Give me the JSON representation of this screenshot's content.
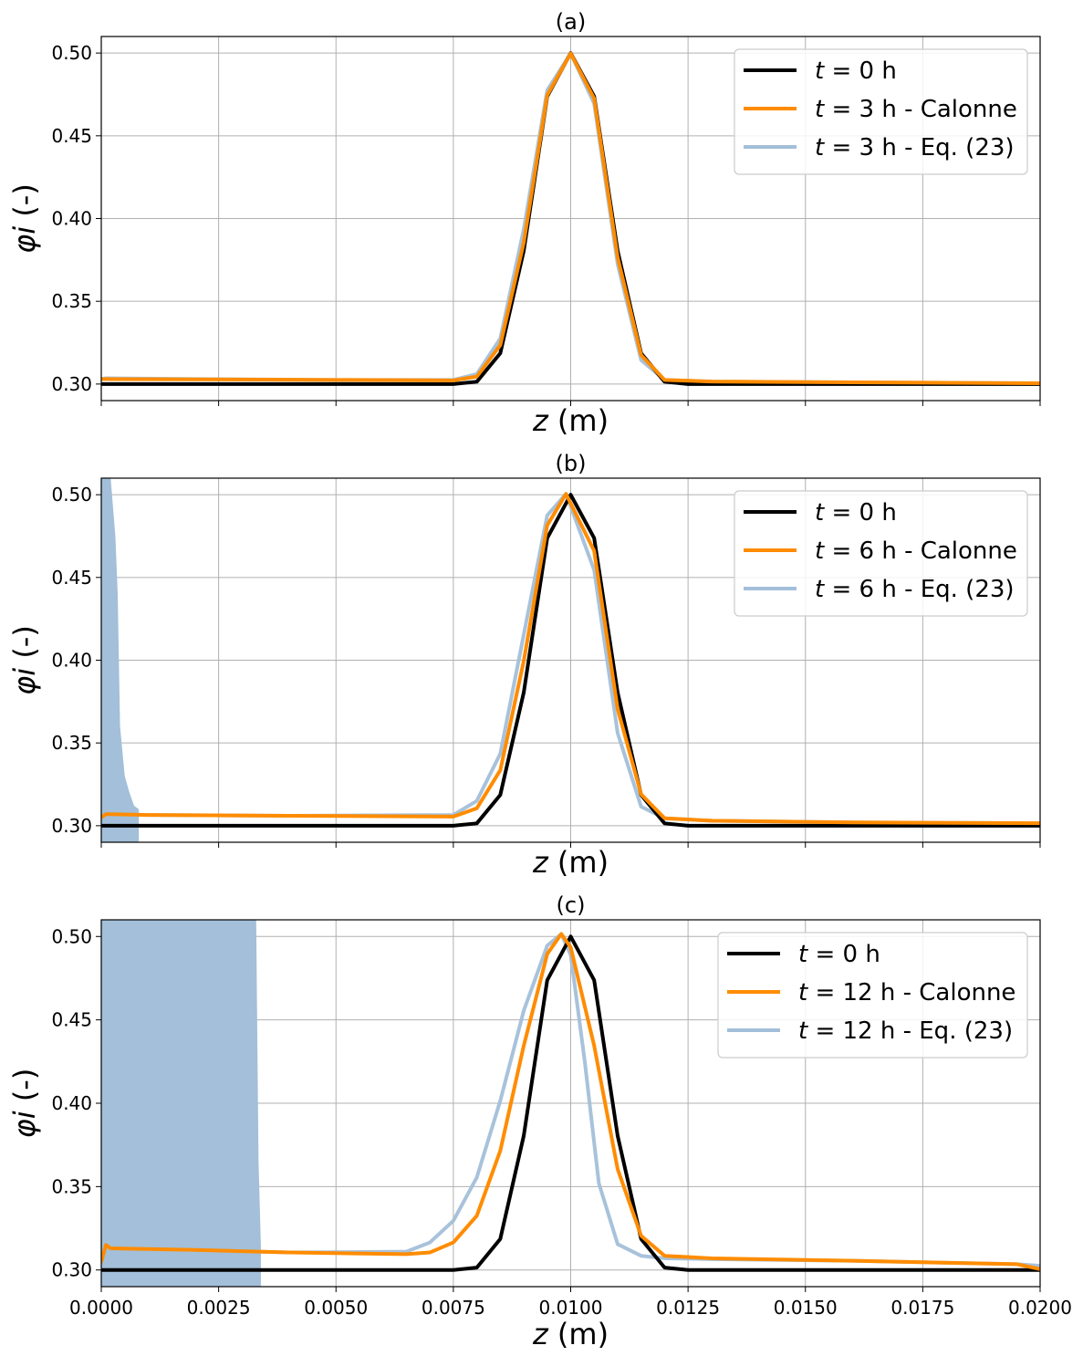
{
  "chart_data": [
    {
      "type": "line",
      "title": "(a)",
      "xlabel": "z (m)",
      "ylabel": "φi (-)",
      "xlim": [
        0.0,
        0.02
      ],
      "ylim": [
        0.29,
        0.51
      ],
      "x_tick_labels_shown": false,
      "yticks": [
        "0.30",
        "0.35",
        "0.40",
        "0.45",
        "0.50"
      ],
      "grid": true,
      "legend_position": "top-right",
      "series": [
        {
          "name": "t = 0 h",
          "color": "#000000",
          "x": [
            0.0,
            0.0075,
            0.008,
            0.0085,
            0.009,
            0.0095,
            0.01,
            0.0105,
            0.011,
            0.0115,
            0.012,
            0.0125,
            0.02
          ],
          "y": [
            0.3,
            0.3,
            0.3014,
            0.3186,
            0.3805,
            0.4738,
            0.5,
            0.4738,
            0.3805,
            0.3186,
            0.3014,
            0.3,
            0.3
          ]
        },
        {
          "name": "t = 3 h - Calonne",
          "color": "#ff8c00",
          "x": [
            0.0,
            0.002,
            0.005,
            0.0075,
            0.008,
            0.0085,
            0.009,
            0.0095,
            0.01,
            0.0105,
            0.011,
            0.0115,
            0.012,
            0.013,
            0.016,
            0.02
          ],
          "y": [
            0.303,
            0.3028,
            0.3025,
            0.3022,
            0.3045,
            0.3235,
            0.3855,
            0.4745,
            0.4998,
            0.4725,
            0.3765,
            0.3175,
            0.3025,
            0.3015,
            0.301,
            0.3005
          ]
        },
        {
          "name": "t = 3 h - Eq. (23)",
          "color": "#a3bfd9",
          "x": [
            0.0,
            0.0001,
            0.002,
            0.005,
            0.0075,
            0.008,
            0.0085,
            0.009,
            0.0095,
            0.01,
            0.0105,
            0.011,
            0.0115,
            0.012,
            0.013,
            0.016,
            0.02
          ],
          "y": [
            0.303,
            0.3035,
            0.303,
            0.3025,
            0.3025,
            0.306,
            0.3275,
            0.3935,
            0.4775,
            0.4998,
            0.4695,
            0.3725,
            0.3145,
            0.3025,
            0.3015,
            0.301,
            0.3005
          ]
        }
      ]
    },
    {
      "type": "line",
      "title": "(b)",
      "xlabel": "z (m)",
      "ylabel": "φi (-)",
      "xlim": [
        0.0,
        0.02
      ],
      "ylim": [
        0.29,
        0.51
      ],
      "x_tick_labels_shown": false,
      "yticks": [
        "0.30",
        "0.35",
        "0.40",
        "0.45",
        "0.50"
      ],
      "grid": true,
      "legend_position": "top-right",
      "series": [
        {
          "name": "t = 0 h",
          "color": "#000000",
          "x": [
            0.0,
            0.0075,
            0.008,
            0.0085,
            0.009,
            0.0095,
            0.01,
            0.0105,
            0.011,
            0.0115,
            0.012,
            0.0125,
            0.02
          ],
          "y": [
            0.3,
            0.3,
            0.3014,
            0.3186,
            0.3805,
            0.4738,
            0.5,
            0.4738,
            0.3805,
            0.3186,
            0.3014,
            0.3,
            0.3
          ]
        },
        {
          "name": "t = 6 h - Calonne",
          "color": "#ff8c00",
          "x": [
            0.0,
            0.0001,
            0.001,
            0.004,
            0.0075,
            0.008,
            0.0085,
            0.009,
            0.0095,
            0.0099,
            0.0105,
            0.011,
            0.0115,
            0.012,
            0.013,
            0.016,
            0.02
          ],
          "y": [
            0.305,
            0.307,
            0.3065,
            0.306,
            0.3055,
            0.3105,
            0.3335,
            0.3995,
            0.4815,
            0.5005,
            0.466,
            0.3705,
            0.319,
            0.3045,
            0.303,
            0.302,
            0.3015
          ]
        },
        {
          "name": "t = 6 h - Eq. (23)",
          "color": "#a3bfd9",
          "x": [
            0.0,
            0.0001,
            0.001,
            0.004,
            0.0075,
            0.008,
            0.0085,
            0.009,
            0.0095,
            0.0099,
            0.0105,
            0.011,
            0.0115,
            0.012,
            0.013,
            0.016,
            0.02
          ],
          "y": [
            0.305,
            0.307,
            0.3065,
            0.306,
            0.3065,
            0.315,
            0.3435,
            0.4155,
            0.4875,
            0.5005,
            0.4545,
            0.356,
            0.3115,
            0.3045,
            0.303,
            0.302,
            0.3015
          ]
        },
        {
          "name": "",
          "color": "#a3bfd9",
          "style": "oscillation-region",
          "x": [
            0.0,
            0.0002,
            0.0003,
            0.00035,
            0.0004,
            0.0005,
            0.0006,
            0.0007,
            0.0008
          ],
          "y": [
            0.51,
            0.51,
            0.475,
            0.44,
            0.36,
            0.33,
            0.32,
            0.312,
            0.31
          ]
        }
      ]
    },
    {
      "type": "line",
      "title": "(c)",
      "xlabel": "z (m)",
      "ylabel": "φi (-)",
      "xlim": [
        0.0,
        0.02
      ],
      "ylim": [
        0.29,
        0.51
      ],
      "xticks": [
        "0.0000",
        "0.0025",
        "0.0050",
        "0.0075",
        "0.0100",
        "0.0125",
        "0.0150",
        "0.0175",
        "0.0200"
      ],
      "yticks": [
        "0.30",
        "0.35",
        "0.40",
        "0.45",
        "0.50"
      ],
      "grid": true,
      "legend_position": "top-right",
      "series": [
        {
          "name": "t = 0 h",
          "color": "#000000",
          "x": [
            0.0,
            0.0075,
            0.008,
            0.0085,
            0.009,
            0.0095,
            0.01,
            0.0105,
            0.011,
            0.0115,
            0.012,
            0.0125,
            0.02
          ],
          "y": [
            0.3,
            0.3,
            0.3014,
            0.3186,
            0.3805,
            0.4738,
            0.5,
            0.4738,
            0.3805,
            0.3186,
            0.3014,
            0.3,
            0.3
          ]
        },
        {
          "name": "t = 12 h - Calonne",
          "color": "#ff8c00",
          "x": [
            0.0,
            0.0001,
            0.0002,
            0.002,
            0.004,
            0.0065,
            0.007,
            0.0075,
            0.008,
            0.0085,
            0.009,
            0.0095,
            0.0098,
            0.01,
            0.0105,
            0.011,
            0.0115,
            0.012,
            0.013,
            0.016,
            0.0195,
            0.02
          ],
          "y": [
            0.305,
            0.315,
            0.313,
            0.312,
            0.3105,
            0.3095,
            0.3105,
            0.3165,
            0.3325,
            0.3715,
            0.4345,
            0.4895,
            0.5015,
            0.4935,
            0.4345,
            0.3605,
            0.3205,
            0.3085,
            0.307,
            0.3055,
            0.3035,
            0.3005
          ]
        },
        {
          "name": "t = 12 h - Eq. (23)",
          "color": "#a3bfd9",
          "x": [
            0.0,
            0.0001,
            0.0002,
            0.002,
            0.004,
            0.0065,
            0.007,
            0.0075,
            0.008,
            0.0085,
            0.009,
            0.0095,
            0.0098,
            0.01,
            0.0103,
            0.0106,
            0.011,
            0.0115,
            0.012,
            0.013,
            0.016,
            0.0195,
            0.02
          ],
          "y": [
            0.305,
            0.315,
            0.313,
            0.312,
            0.3105,
            0.311,
            0.3165,
            0.3295,
            0.3555,
            0.4015,
            0.4555,
            0.4945,
            0.5015,
            0.489,
            0.425,
            0.352,
            0.3155,
            0.3085,
            0.307,
            0.3065,
            0.3055,
            0.3035,
            0.3025
          ]
        },
        {
          "name": "",
          "color": "#a3bfd9",
          "style": "oscillation-region",
          "x": [
            0.0,
            0.0033,
            0.00335,
            0.0034
          ],
          "y": [
            0.51,
            0.51,
            0.365,
            0.315
          ]
        }
      ]
    }
  ]
}
